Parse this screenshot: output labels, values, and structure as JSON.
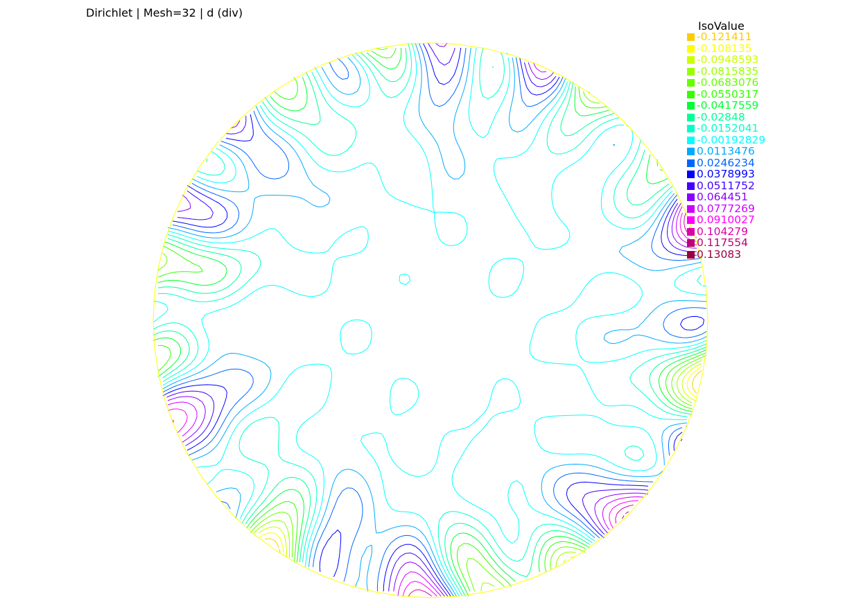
{
  "title": "Dirichlet | Mesh=32 | d (div)",
  "legend": {
    "title": "IsoValue",
    "items": [
      {
        "label": "-0.121411",
        "color": "#ffcc00"
      },
      {
        "label": "-0.108135",
        "color": "#ffff00"
      },
      {
        "label": "-0.0948593",
        "color": "#ccff00"
      },
      {
        "label": "-0.0815835",
        "color": "#99ff00"
      },
      {
        "label": "-0.0683076",
        "color": "#66ff00"
      },
      {
        "label": "-0.0550317",
        "color": "#33ff00"
      },
      {
        "label": "-0.0417559",
        "color": "#00ff33"
      },
      {
        "label": "-0.02848",
        "color": "#00ff99"
      },
      {
        "label": "-0.0152041",
        "color": "#00ffcc"
      },
      {
        "label": "-0.00192829",
        "color": "#00ffff"
      },
      {
        "label": "0.0113476",
        "color": "#00aaff"
      },
      {
        "label": "0.0246234",
        "color": "#0066ff"
      },
      {
        "label": "0.0378993",
        "color": "#0000ff"
      },
      {
        "label": "0.0511752",
        "color": "#4400ff"
      },
      {
        "label": "0.064451",
        "color": "#8800ff"
      },
      {
        "label": "0.0777269",
        "color": "#cc00ff"
      },
      {
        "label": "0.0910027",
        "color": "#ff00ff"
      },
      {
        "label": "0.104279",
        "color": "#dd00aa"
      },
      {
        "label": "0.117554",
        "color": "#bb0077"
      },
      {
        "label": "0.13083",
        "color": "#990044"
      }
    ]
  },
  "chart_data": {
    "type": "contour",
    "title": "Dirichlet | Mesh=32 | d (div)",
    "legend_title": "IsoValue",
    "levels": [
      -0.121411,
      -0.108135,
      -0.0948593,
      -0.0815835,
      -0.0683076,
      -0.0550317,
      -0.0417559,
      -0.02848,
      -0.0152041,
      -0.00192829,
      0.0113476,
      0.0246234,
      0.0378993,
      0.0511752,
      0.064451,
      0.0777269,
      0.0910027,
      0.104279,
      0.117554,
      0.13083
    ],
    "domain": "disk",
    "boundary_color": "#ffff00",
    "legend_placement": "top-right"
  }
}
